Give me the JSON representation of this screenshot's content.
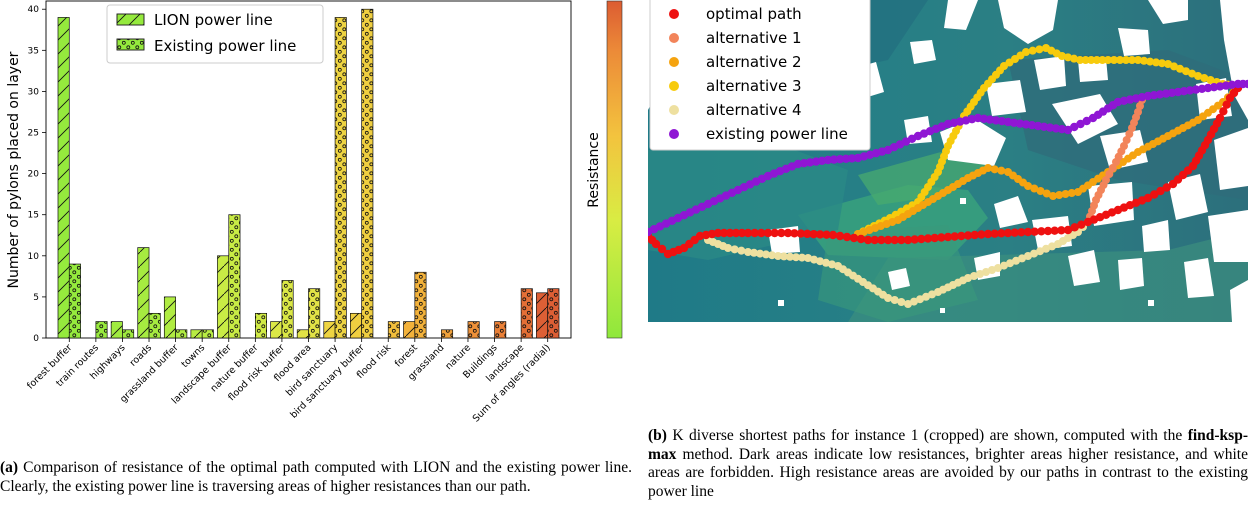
{
  "chart_data": [
    {
      "type": "bar",
      "ylabel": "Number of pylons placed on layer",
      "ylim": [
        0,
        41
      ],
      "yticks": [
        0,
        5,
        10,
        15,
        20,
        25,
        30,
        35,
        40
      ],
      "colorbar_label": "Resistance",
      "categories": [
        "forest buffer",
        "train routes",
        "highways",
        "roads",
        "grassland buffer",
        "towns",
        "landscape buffer",
        "nature buffer",
        "flood risk buffer",
        "flood area",
        "bird sanctuary",
        "bird sanctuary buffer",
        "flood risk",
        "forest",
        "grassland",
        "nature",
        "Buildings",
        "landscape",
        "Sum of angles (radial)"
      ],
      "bar_colors": [
        "#95ea3d",
        "#98ea3e",
        "#a0eb3f",
        "#a6eb40",
        "#b0ec42",
        "#b8ec43",
        "#c9ec45",
        "#d1eb45",
        "#dbe846",
        "#e2e346",
        "#eed442",
        "#f0cf40",
        "#f2bf3c",
        "#f3b23b",
        "#f1a23b",
        "#ee9139",
        "#ea8037",
        "#e46f36",
        "#dd5f35"
      ],
      "series": [
        {
          "name": "LION power line",
          "values": [
            39,
            0,
            2,
            11,
            5,
            1,
            10,
            0,
            2,
            1,
            2,
            3,
            0,
            2,
            0,
            0,
            0,
            0,
            5.5
          ]
        },
        {
          "name": "Existing power line",
          "values": [
            9,
            2,
            1,
            3,
            1,
            1,
            15,
            3,
            7,
            6,
            39,
            40,
            2,
            8,
            1,
            2,
            2,
            6,
            6
          ]
        }
      ]
    },
    {
      "type": "scatter",
      "legend_location": "top-left",
      "series": [
        {
          "name": "optimal path",
          "color": "#ee1111"
        },
        {
          "name": "alternative 1",
          "color": "#f2845a"
        },
        {
          "name": "alternative 2",
          "color": "#f5a30f"
        },
        {
          "name": "alternative 3",
          "color": "#f7cb0d"
        },
        {
          "name": "alternative 4",
          "color": "#eee0a0"
        },
        {
          "name": "existing power line",
          "color": "#8f16d4"
        }
      ]
    }
  ],
  "captions": {
    "a_label": "(a)",
    "a_text": " Comparison of resistance of the optimal path computed with LION and the existing power line. Clearly, the existing power line is traversing areas of higher resistances than our path.",
    "b_label": "(b)",
    "b_text1": " K diverse shortest paths for instance 1 (cropped) are shown, computed with the ",
    "b_method": "find-ksp-max",
    "b_text2": " method. Dark areas indicate low resistances, brighter areas higher resistance, and white areas are forbidden. High resistance areas are avoided by our paths in contrast to the existing power line"
  }
}
